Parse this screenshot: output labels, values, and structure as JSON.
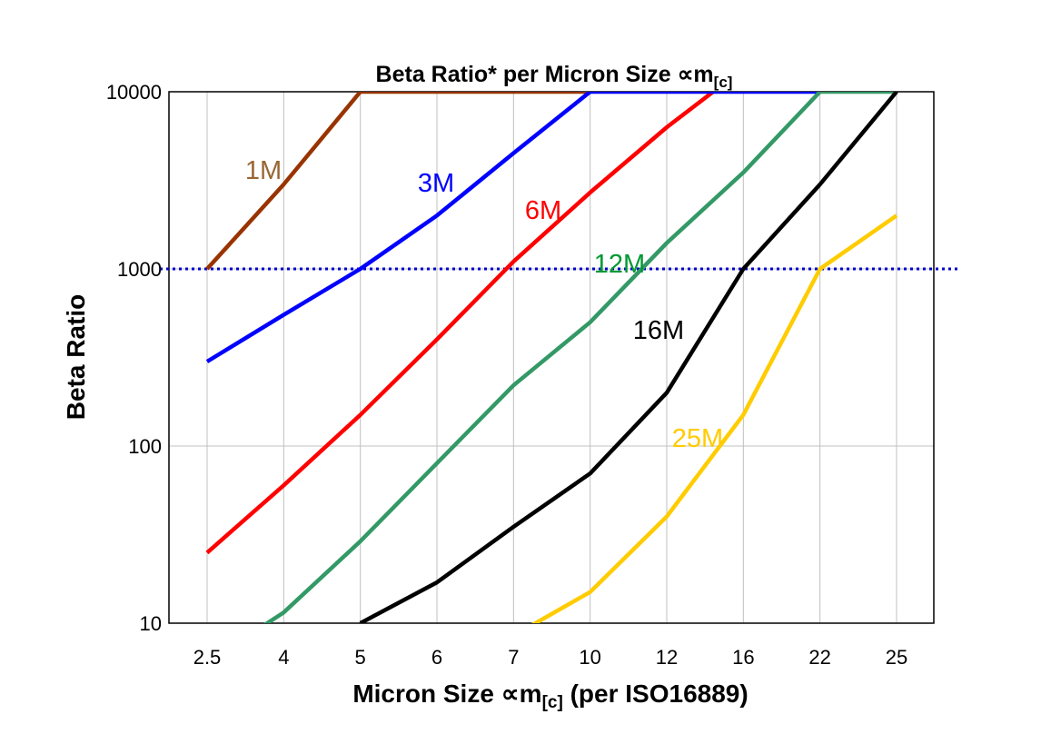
{
  "chart_data": {
    "type": "line",
    "title": "Beta Ratio* per Micron Size ∝m",
    "title_subscript": "[c]",
    "xlabel": "Micron Size ∝m",
    "xlabel_subscript": "[c]",
    "xlabel_suffix": " (per ISO16889)",
    "ylabel": "Beta Ratio",
    "y_scale": "log",
    "ylim": [
      10,
      10000
    ],
    "y_ticks": [
      "10",
      "100",
      "1000",
      "10000"
    ],
    "categories": [
      "2.5",
      "4",
      "5",
      "6",
      "7",
      "10",
      "12",
      "16",
      "22",
      "25"
    ],
    "grid": true,
    "reference_line": {
      "value": 1000,
      "style": "dotted",
      "color": "#0000CC"
    },
    "series": [
      {
        "name": "6M",
        "color": "#FF0000",
        "label_color": "#FF0000",
        "values": [
          25,
          60,
          150,
          400,
          1100,
          2700,
          6300,
          13500,
          null,
          null
        ]
      },
      {
        "name": "1M",
        "color": "#993300",
        "label_color": "#996633",
        "values": [
          1000,
          3000,
          10000,
          10000,
          10000,
          10000,
          null,
          null,
          null,
          null
        ]
      },
      {
        "name": "3M",
        "color": "#0000FF",
        "label_color": "#0000FF",
        "values": [
          300,
          550,
          1000,
          2000,
          4500,
          10000,
          10000,
          10000,
          10000,
          null
        ]
      },
      {
        "name": "12M",
        "color": "#339966",
        "label_color": "#009933",
        "values": [
          6,
          11.5,
          29,
          80,
          220,
          500,
          1400,
          3500,
          10000,
          10000
        ]
      },
      {
        "name": "16M",
        "color": "#000000",
        "label_color": "#000000",
        "values": [
          null,
          null,
          10,
          17,
          35,
          70,
          200,
          1000,
          3000,
          10000
        ]
      },
      {
        "name": "25M",
        "color": "#FFCC00",
        "label_color": "#FFCC00",
        "values": [
          null,
          null,
          null,
          null,
          8.5,
          15,
          40,
          150,
          1000,
          2000
        ]
      }
    ]
  }
}
